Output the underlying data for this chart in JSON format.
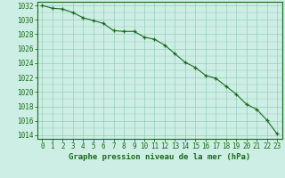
{
  "x": [
    0,
    1,
    2,
    3,
    4,
    5,
    6,
    7,
    8,
    9,
    10,
    11,
    12,
    13,
    14,
    15,
    16,
    17,
    18,
    19,
    20,
    21,
    22,
    23
  ],
  "y": [
    1032.0,
    1031.6,
    1031.5,
    1031.0,
    1030.3,
    1029.9,
    1029.5,
    1028.5,
    1028.4,
    1028.4,
    1027.6,
    1027.3,
    1026.5,
    1025.3,
    1024.1,
    1023.4,
    1022.3,
    1021.9,
    1020.8,
    1019.7,
    1018.3,
    1017.6,
    1016.1,
    1014.2
  ],
  "line_color": "#1a6b1a",
  "marker": "+",
  "background_color": "#cceee4",
  "grid_color": "#99ccbb",
  "xlabel": "Graphe pression niveau de la mer (hPa)",
  "ylim": [
    1013.5,
    1032.5
  ],
  "xlim": [
    -0.5,
    23.5
  ],
  "yticks": [
    1014,
    1016,
    1018,
    1020,
    1022,
    1024,
    1026,
    1028,
    1030,
    1032
  ],
  "xticks": [
    0,
    1,
    2,
    3,
    4,
    5,
    6,
    7,
    8,
    9,
    10,
    11,
    12,
    13,
    14,
    15,
    16,
    17,
    18,
    19,
    20,
    21,
    22,
    23
  ],
  "tick_color": "#1a6b1a",
  "axis_color": "#1a6b1a",
  "label_fontsize": 6.5,
  "tick_fontsize": 5.5,
  "linewidth": 0.8,
  "markersize": 3.5
}
